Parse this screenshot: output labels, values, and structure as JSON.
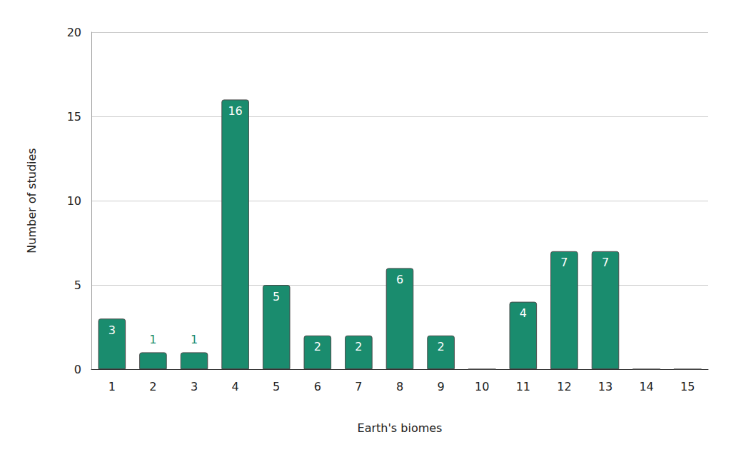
{
  "chart_data": {
    "type": "bar",
    "x_label": "Earth's biomes",
    "y_label": "Number of studies",
    "categories": [
      "1",
      "2",
      "3",
      "4",
      "5",
      "6",
      "7",
      "8",
      "9",
      "10",
      "11",
      "12",
      "13",
      "14",
      "15"
    ],
    "values": [
      3,
      1,
      1,
      16,
      5,
      2,
      2,
      6,
      2,
      0,
      4,
      7,
      7,
      0,
      0
    ],
    "color": "#1a8c6e",
    "ylim": [
      0,
      20
    ],
    "yticks": [
      0,
      5,
      10,
      15,
      20
    ],
    "grid": true,
    "data_labels": true
  }
}
